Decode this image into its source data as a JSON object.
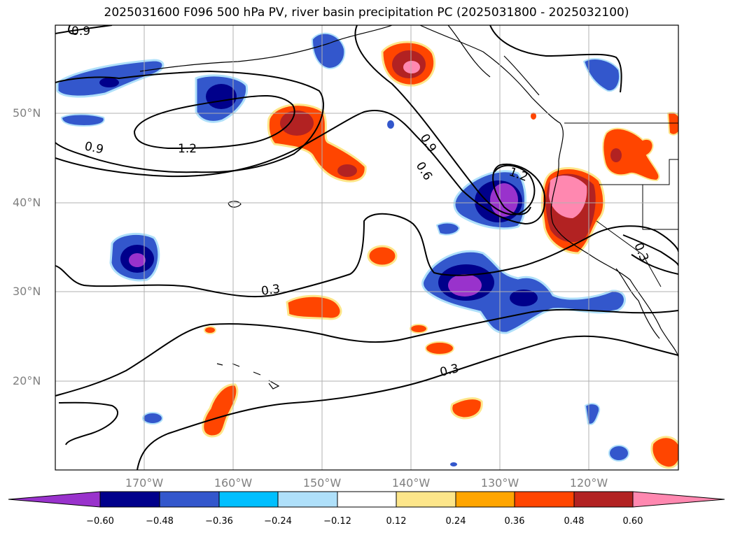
{
  "title": "2025031600 F096 500 hPa PV, river basin precipitation PC (2025031800 - 2025032100)",
  "map": {
    "lat_labels": [
      "50°N",
      "40°N",
      "30°N",
      "20°N"
    ],
    "lon_labels": [
      "170°W",
      "160°W",
      "150°W",
      "140°W",
      "130°W",
      "120°W"
    ],
    "contour_labels": [
      "0.9",
      "1.2",
      "0.9",
      "0.9",
      "0.6",
      "1.2",
      "0.3",
      "0.3",
      "0.3"
    ]
  },
  "colorbar": {
    "ticks": [
      "−0.60",
      "−0.48",
      "−0.36",
      "−0.24",
      "−0.12",
      "0.12",
      "0.24",
      "0.36",
      "0.48",
      "0.60"
    ],
    "colors": [
      "#9932cc",
      "#00008b",
      "#3357cc",
      "#00bfff",
      "#afe0fa",
      "#ffffff",
      "#fde68a",
      "#ffa500",
      "#ff4500",
      "#b22222",
      "#ff88b0"
    ]
  },
  "colors": {
    "grid": "#b0b0b0",
    "contour": "#000000",
    "coast": "#000000"
  }
}
